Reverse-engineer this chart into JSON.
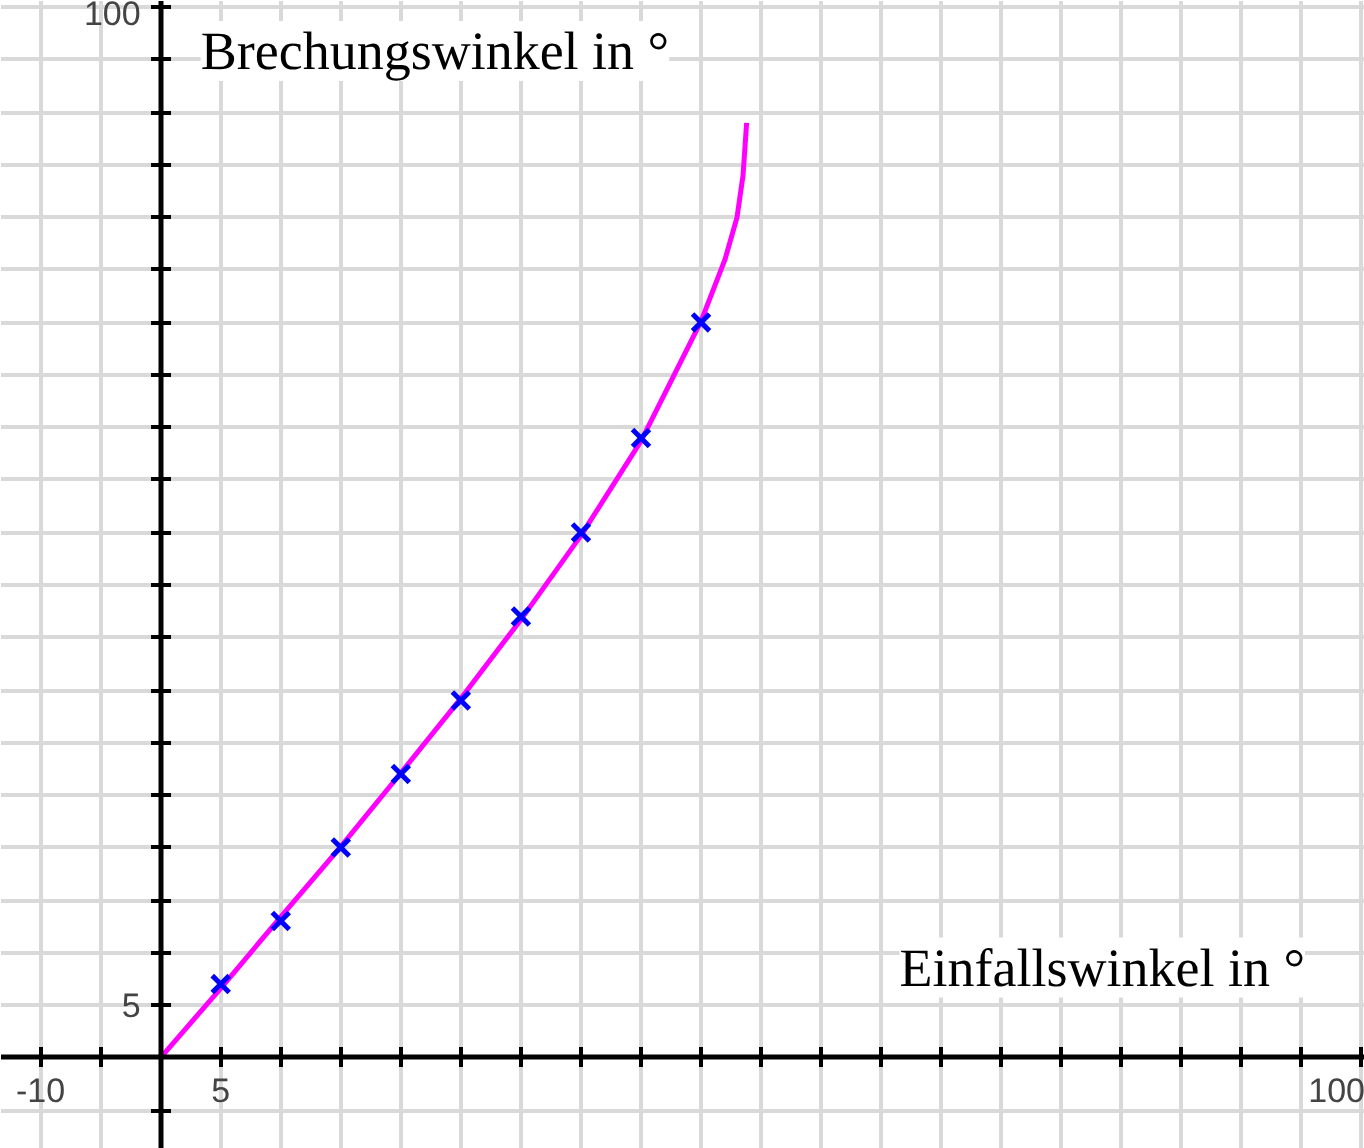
{
  "chart_data": {
    "type": "line",
    "xlabel": "Einfallswinkel in °",
    "ylabel": "Brechungswinkel in °",
    "xlim": [
      -13.3,
      100.3
    ],
    "ylim": [
      -8.7,
      100.6
    ],
    "xticks": [
      {
        "value": -10,
        "label": "-10"
      },
      {
        "value": -5,
        "label": null
      },
      {
        "value": 0,
        "label": null
      },
      {
        "value": 5,
        "label": "5"
      },
      {
        "value": 10,
        "label": null
      },
      {
        "value": 15,
        "label": null
      },
      {
        "value": 20,
        "label": null
      },
      {
        "value": 25,
        "label": null
      },
      {
        "value": 30,
        "label": null
      },
      {
        "value": 35,
        "label": null
      },
      {
        "value": 40,
        "label": null
      },
      {
        "value": 45,
        "label": null
      },
      {
        "value": 50,
        "label": null
      },
      {
        "value": 55,
        "label": null
      },
      {
        "value": 60,
        "label": null
      },
      {
        "value": 65,
        "label": null
      },
      {
        "value": 70,
        "label": null
      },
      {
        "value": 75,
        "label": null
      },
      {
        "value": 80,
        "label": null
      },
      {
        "value": 85,
        "label": null
      },
      {
        "value": 90,
        "label": null
      },
      {
        "value": 95,
        "label": null
      },
      {
        "value": 100,
        "label": "100"
      }
    ],
    "yticks": [
      {
        "value": -5,
        "label": null
      },
      {
        "value": 0,
        "label": null
      },
      {
        "value": 5,
        "label": "5"
      },
      {
        "value": 10,
        "label": null
      },
      {
        "value": 15,
        "label": null
      },
      {
        "value": 20,
        "label": null
      },
      {
        "value": 25,
        "label": null
      },
      {
        "value": 30,
        "label": null
      },
      {
        "value": 35,
        "label": null
      },
      {
        "value": 40,
        "label": null
      },
      {
        "value": 45,
        "label": null
      },
      {
        "value": 50,
        "label": null
      },
      {
        "value": 55,
        "label": null
      },
      {
        "value": 60,
        "label": null
      },
      {
        "value": 65,
        "label": null
      },
      {
        "value": 70,
        "label": null
      },
      {
        "value": 75,
        "label": null
      },
      {
        "value": 80,
        "label": null
      },
      {
        "value": 85,
        "label": null
      },
      {
        "value": 90,
        "label": null
      },
      {
        "value": 95,
        "label": null
      },
      {
        "value": 100,
        "label": "100"
      }
    ],
    "grid": true,
    "series": [
      {
        "color": "#ff00ff",
        "marker": "none",
        "x": [
          0,
          5,
          10,
          15,
          20,
          25,
          30,
          35,
          40,
          45,
          47,
          48,
          48.5,
          48.8
        ],
        "values": [
          0,
          6.6,
          13.4,
          20.1,
          27.1,
          34.2,
          41.7,
          49.7,
          58.7,
          70.1,
          76,
          80,
          84,
          89
        ]
      },
      {
        "type": "scatter",
        "color": "#0000ff",
        "marker": "cross",
        "x": [
          5,
          10,
          15,
          20,
          25,
          30,
          35,
          40,
          45
        ],
        "values": [
          7,
          13,
          20,
          27,
          34,
          42,
          50,
          59,
          70
        ]
      }
    ]
  }
}
